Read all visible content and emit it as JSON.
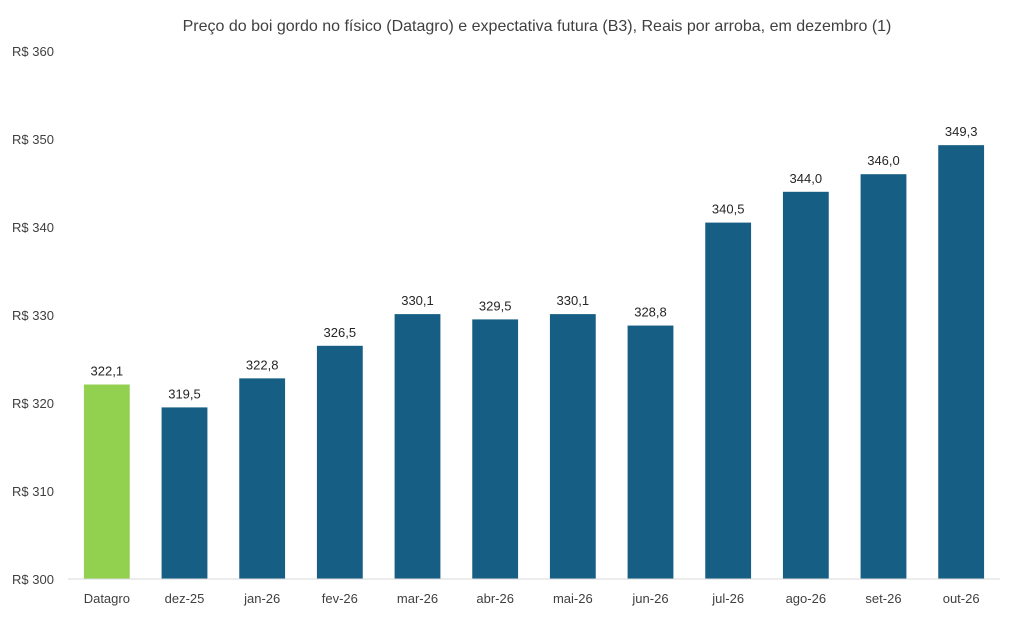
{
  "chart_data": {
    "type": "bar",
    "title": "Preço do boi gordo no físico (Datagro)  e expectativa futura (B3), Reais por arroba, em dezembro (1)",
    "categories": [
      "Datagro",
      "dez-25",
      "jan-26",
      "fev-26",
      "mar-26",
      "abr-26",
      "mai-26",
      "jun-26",
      "jul-26",
      "ago-26",
      "set-26",
      "out-26"
    ],
    "values": [
      322.1,
      319.5,
      322.8,
      326.5,
      330.1,
      329.5,
      330.1,
      328.8,
      340.5,
      344.0,
      346.0,
      349.3
    ],
    "value_labels": [
      "322,1",
      "319,5",
      "322,8",
      "326,5",
      "330,1",
      "329,5",
      "330,1",
      "328,8",
      "340,5",
      "344,0",
      "346,0",
      "349,3"
    ],
    "ylim": [
      300,
      360
    ],
    "yticks": [
      300,
      310,
      320,
      330,
      340,
      350,
      360
    ],
    "ytick_labels": [
      "R$ 300",
      "R$ 310",
      "R$ 320",
      "R$ 330",
      "R$ 340",
      "R$ 350",
      "R$ 360"
    ],
    "xlabel": "",
    "ylabel": "",
    "grid": false,
    "colors": {
      "highlight": "#92D050",
      "default": "#165E83",
      "axis": "#D9D9D9"
    },
    "highlight_index": 0
  }
}
